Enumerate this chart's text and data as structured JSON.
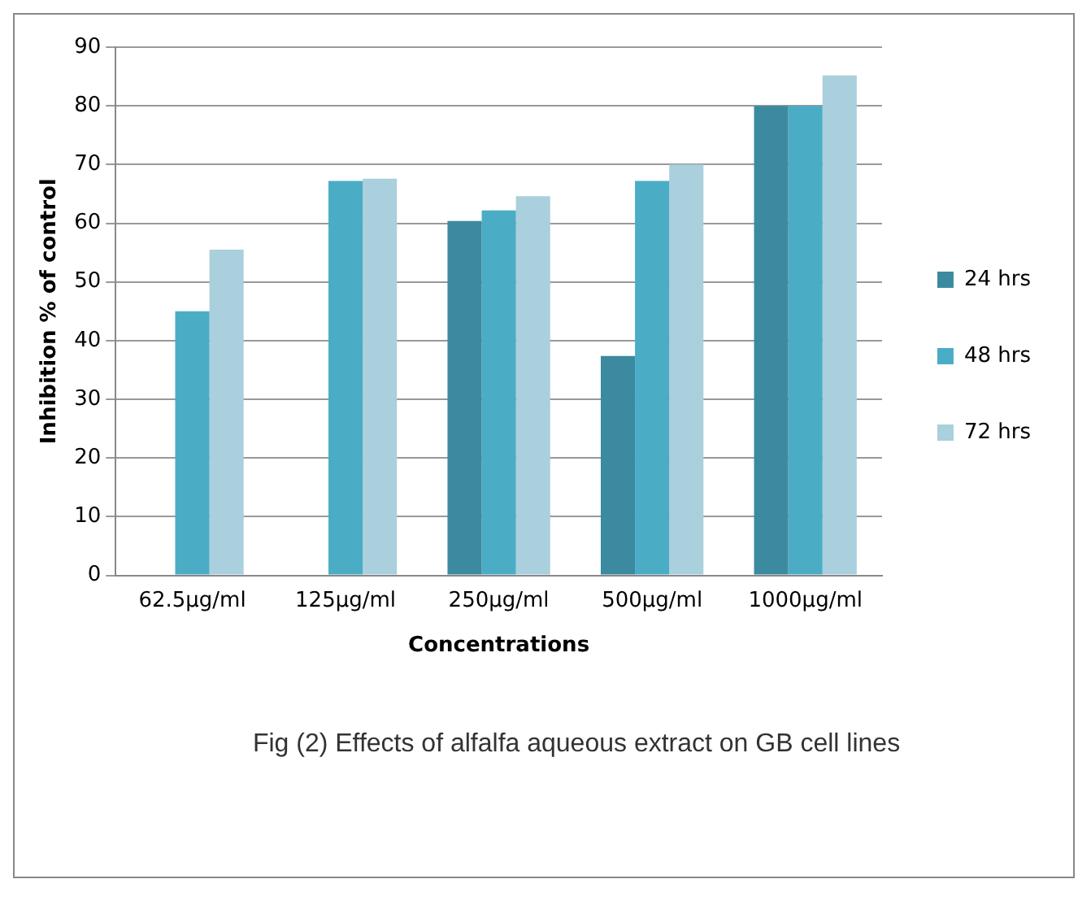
{
  "chart_data": {
    "type": "bar",
    "ylabel": "Inhibition % of control",
    "xlabel": "Concentrations",
    "categories": [
      "62.5µg/ml",
      "125µg/ml",
      "250µg/ml",
      "500µg/ml",
      "1000µg/ml"
    ],
    "series": [
      {
        "name": "24 hrs",
        "color": "#3c8aa0",
        "values": [
          0,
          0,
          60.4,
          37.4,
          80
        ]
      },
      {
        "name": "48 hrs",
        "color": "#4bacc6",
        "values": [
          45,
          67.2,
          62.2,
          67.2,
          80
        ]
      },
      {
        "name": "72 hrs",
        "color": "#aacfdd",
        "values": [
          55.5,
          67.6,
          64.6,
          70,
          85.2
        ]
      }
    ],
    "ylim": [
      0,
      90
    ],
    "yticks": [
      0,
      10,
      20,
      30,
      40,
      50,
      60,
      70,
      80,
      90
    ],
    "grid": "y",
    "legend": "right",
    "annotations": [
      "Fig (2) Effects of alfalfa aqueous extract on GB cell lines"
    ]
  }
}
